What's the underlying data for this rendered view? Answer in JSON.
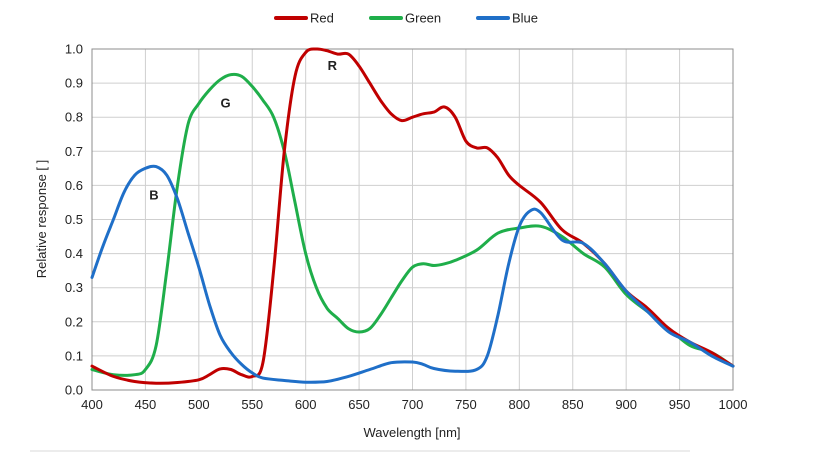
{
  "chart_data": {
    "type": "line",
    "xlabel": "Wavelength [nm]",
    "ylabel": "Relative response [ ]",
    "xlim": [
      400,
      1000
    ],
    "ylim": [
      0,
      1.0
    ],
    "x_ticks": [
      400,
      450,
      500,
      550,
      600,
      650,
      700,
      750,
      800,
      850,
      900,
      950,
      1000
    ],
    "y_ticks": [
      0.0,
      0.1,
      0.2,
      0.3,
      0.4,
      0.5,
      0.6,
      0.7,
      0.8,
      0.9,
      1.0
    ],
    "y_tick_labels": [
      "0.0",
      "0.1",
      "0.2",
      "0.3",
      "0.4",
      "0.5",
      "0.6",
      "0.7",
      "0.8",
      "0.9",
      "1.0"
    ],
    "grid": true,
    "legend_position": "top-center",
    "series": [
      {
        "name": "Red",
        "color": "#c00000",
        "points": [
          [
            400,
            0.07
          ],
          [
            420,
            0.04
          ],
          [
            440,
            0.025
          ],
          [
            460,
            0.02
          ],
          [
            480,
            0.022
          ],
          [
            500,
            0.03
          ],
          [
            510,
            0.045
          ],
          [
            520,
            0.062
          ],
          [
            530,
            0.06
          ],
          [
            540,
            0.045
          ],
          [
            550,
            0.04
          ],
          [
            560,
            0.08
          ],
          [
            570,
            0.35
          ],
          [
            580,
            0.7
          ],
          [
            590,
            0.92
          ],
          [
            600,
            0.99
          ],
          [
            610,
            1.0
          ],
          [
            620,
            0.995
          ],
          [
            630,
            0.985
          ],
          [
            640,
            0.985
          ],
          [
            650,
            0.95
          ],
          [
            660,
            0.9
          ],
          [
            670,
            0.85
          ],
          [
            680,
            0.81
          ],
          [
            690,
            0.79
          ],
          [
            700,
            0.8
          ],
          [
            710,
            0.81
          ],
          [
            720,
            0.815
          ],
          [
            730,
            0.83
          ],
          [
            740,
            0.8
          ],
          [
            750,
            0.73
          ],
          [
            760,
            0.71
          ],
          [
            770,
            0.71
          ],
          [
            780,
            0.68
          ],
          [
            790,
            0.63
          ],
          [
            800,
            0.6
          ],
          [
            820,
            0.55
          ],
          [
            840,
            0.47
          ],
          [
            860,
            0.43
          ],
          [
            880,
            0.37
          ],
          [
            900,
            0.29
          ],
          [
            920,
            0.24
          ],
          [
            940,
            0.18
          ],
          [
            960,
            0.14
          ],
          [
            980,
            0.11
          ],
          [
            1000,
            0.07
          ]
        ]
      },
      {
        "name": "Green",
        "color": "#1fae4a",
        "points": [
          [
            400,
            0.06
          ],
          [
            420,
            0.045
          ],
          [
            440,
            0.045
          ],
          [
            450,
            0.06
          ],
          [
            460,
            0.13
          ],
          [
            470,
            0.35
          ],
          [
            480,
            0.6
          ],
          [
            490,
            0.78
          ],
          [
            500,
            0.84
          ],
          [
            510,
            0.88
          ],
          [
            520,
            0.91
          ],
          [
            530,
            0.925
          ],
          [
            540,
            0.92
          ],
          [
            550,
            0.89
          ],
          [
            560,
            0.85
          ],
          [
            570,
            0.8
          ],
          [
            580,
            0.7
          ],
          [
            590,
            0.55
          ],
          [
            600,
            0.4
          ],
          [
            610,
            0.3
          ],
          [
            620,
            0.24
          ],
          [
            630,
            0.21
          ],
          [
            640,
            0.18
          ],
          [
            650,
            0.17
          ],
          [
            660,
            0.18
          ],
          [
            670,
            0.22
          ],
          [
            680,
            0.27
          ],
          [
            690,
            0.32
          ],
          [
            700,
            0.36
          ],
          [
            710,
            0.37
          ],
          [
            720,
            0.365
          ],
          [
            730,
            0.37
          ],
          [
            740,
            0.38
          ],
          [
            760,
            0.41
          ],
          [
            780,
            0.46
          ],
          [
            800,
            0.475
          ],
          [
            820,
            0.48
          ],
          [
            840,
            0.45
          ],
          [
            860,
            0.4
          ],
          [
            880,
            0.36
          ],
          [
            900,
            0.28
          ],
          [
            920,
            0.23
          ],
          [
            940,
            0.18
          ],
          [
            960,
            0.13
          ],
          [
            980,
            0.11
          ],
          [
            1000,
            0.07
          ]
        ]
      },
      {
        "name": "Blue",
        "color": "#1f6fc8",
        "points": [
          [
            400,
            0.33
          ],
          [
            410,
            0.42
          ],
          [
            420,
            0.5
          ],
          [
            430,
            0.58
          ],
          [
            440,
            0.63
          ],
          [
            450,
            0.65
          ],
          [
            460,
            0.655
          ],
          [
            470,
            0.63
          ],
          [
            480,
            0.56
          ],
          [
            490,
            0.46
          ],
          [
            500,
            0.36
          ],
          [
            510,
            0.25
          ],
          [
            520,
            0.16
          ],
          [
            530,
            0.11
          ],
          [
            540,
            0.075
          ],
          [
            550,
            0.05
          ],
          [
            560,
            0.035
          ],
          [
            580,
            0.028
          ],
          [
            600,
            0.023
          ],
          [
            620,
            0.025
          ],
          [
            640,
            0.04
          ],
          [
            660,
            0.06
          ],
          [
            680,
            0.08
          ],
          [
            700,
            0.082
          ],
          [
            710,
            0.075
          ],
          [
            720,
            0.063
          ],
          [
            740,
            0.055
          ],
          [
            760,
            0.06
          ],
          [
            770,
            0.1
          ],
          [
            780,
            0.22
          ],
          [
            790,
            0.37
          ],
          [
            800,
            0.48
          ],
          [
            810,
            0.525
          ],
          [
            820,
            0.52
          ],
          [
            840,
            0.44
          ],
          [
            860,
            0.43
          ],
          [
            880,
            0.37
          ],
          [
            900,
            0.29
          ],
          [
            920,
            0.23
          ],
          [
            940,
            0.17
          ],
          [
            960,
            0.14
          ],
          [
            980,
            0.1
          ],
          [
            1000,
            0.07
          ]
        ]
      }
    ],
    "annotations": [
      {
        "text": "R",
        "x": 625,
        "y": 0.95
      },
      {
        "text": "G",
        "x": 525,
        "y": 0.84
      },
      {
        "text": "B",
        "x": 458,
        "y": 0.57
      }
    ]
  }
}
